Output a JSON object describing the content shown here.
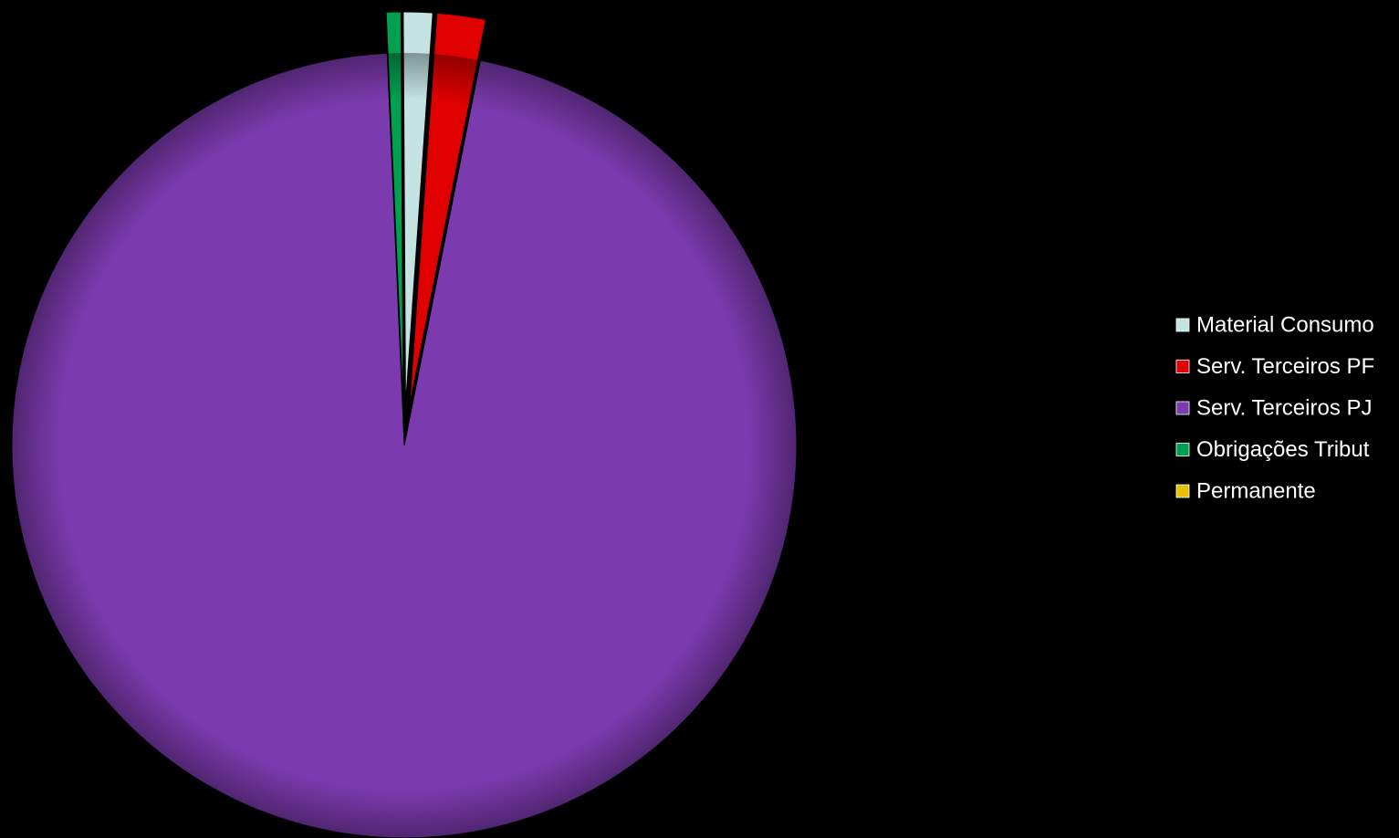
{
  "chart_data": {
    "type": "pie",
    "title": "",
    "legend_position": "right",
    "slices": [
      {
        "label": "Material Consumo",
        "value": 1.2,
        "color": "#C5E3E3",
        "exploded": true
      },
      {
        "label": "Serv. Terceiros PF",
        "value": 2.0,
        "color": "#E00000",
        "exploded": true
      },
      {
        "label": "Serv. Terceiros PJ",
        "value": 96.2,
        "color": "#7B3AAE",
        "exploded": false
      },
      {
        "label": "Obrigações Tribut",
        "value": 0.6,
        "color": "#00A050",
        "exploded": true
      },
      {
        "label": "Permanente",
        "value": 0.0,
        "color": "#E8C000",
        "exploded": true
      }
    ]
  }
}
